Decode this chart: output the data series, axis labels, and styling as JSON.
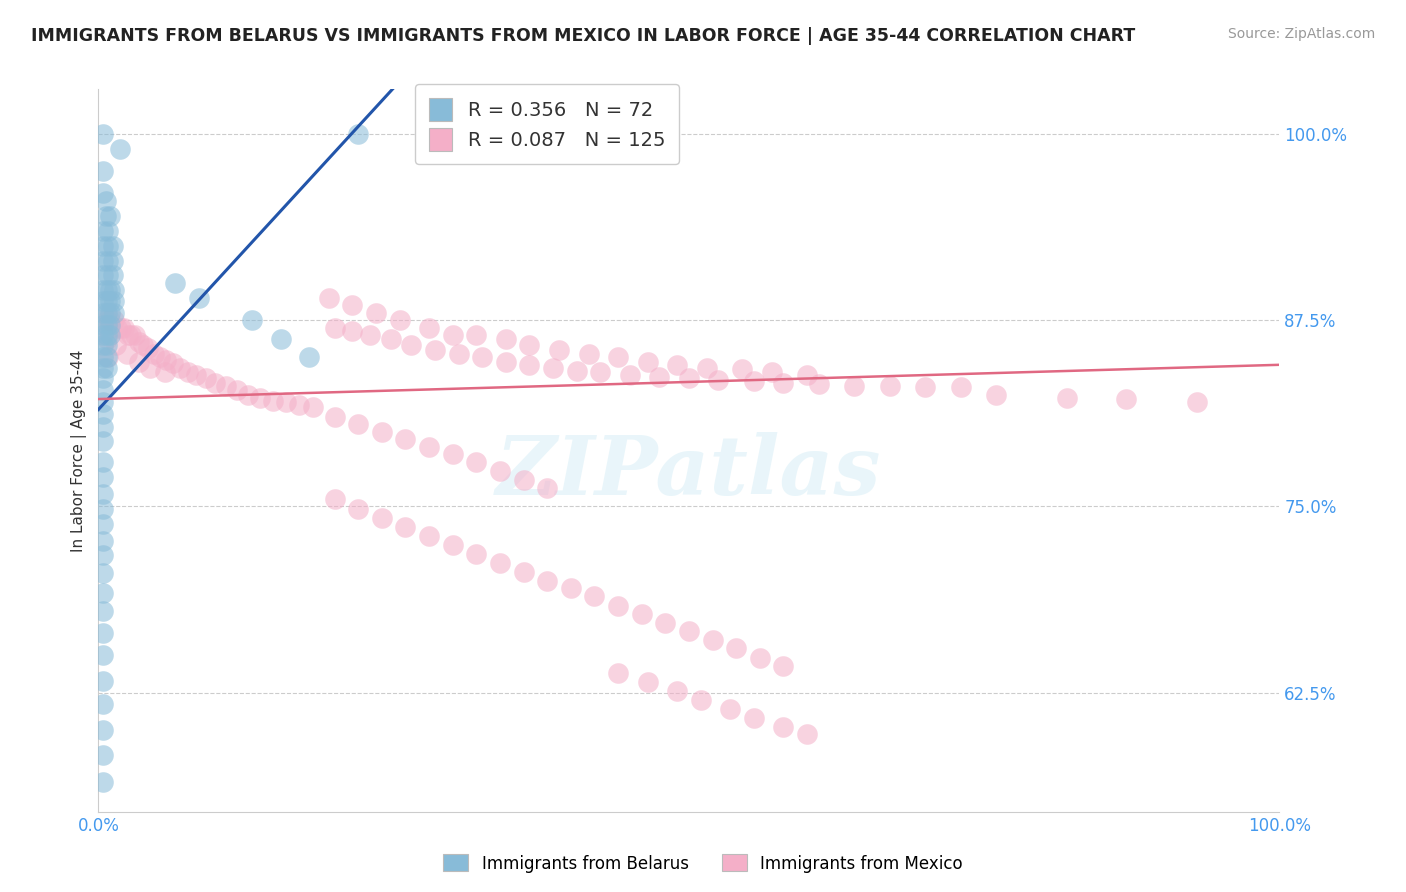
{
  "title": "IMMIGRANTS FROM BELARUS VS IMMIGRANTS FROM MEXICO IN LABOR FORCE | AGE 35-44 CORRELATION CHART",
  "source": "Source: ZipAtlas.com",
  "ylabel": "In Labor Force | Age 35-44",
  "xlim": [
    0.0,
    1.0
  ],
  "ylim": [
    0.545,
    1.03
  ],
  "y_ticks": [
    0.625,
    0.75,
    0.875,
    1.0
  ],
  "y_tick_labels": [
    "62.5%",
    "75.0%",
    "87.5%",
    "100.0%"
  ],
  "x_ticks": [
    0.0,
    1.0
  ],
  "x_tick_labels": [
    "0.0%",
    "100.0%"
  ],
  "background_color": "#ffffff",
  "grid_color": "#cccccc",
  "blue_color": "#88bbd8",
  "pink_color": "#f4afc8",
  "blue_line_color": "#2255aa",
  "pink_line_color": "#e06882",
  "watermark": "ZIPatlas",
  "blue_label_R": "0.356",
  "blue_label_N": "72",
  "pink_label_R": "0.087",
  "pink_label_N": "125",
  "blue_scatter": [
    [
      0.004,
      1.0
    ],
    [
      0.018,
      0.99
    ],
    [
      0.004,
      0.975
    ],
    [
      0.004,
      0.96
    ],
    [
      0.006,
      0.955
    ],
    [
      0.006,
      0.945
    ],
    [
      0.01,
      0.945
    ],
    [
      0.004,
      0.935
    ],
    [
      0.008,
      0.935
    ],
    [
      0.004,
      0.925
    ],
    [
      0.008,
      0.925
    ],
    [
      0.012,
      0.925
    ],
    [
      0.004,
      0.915
    ],
    [
      0.008,
      0.915
    ],
    [
      0.012,
      0.915
    ],
    [
      0.004,
      0.905
    ],
    [
      0.008,
      0.905
    ],
    [
      0.012,
      0.905
    ],
    [
      0.004,
      0.895
    ],
    [
      0.007,
      0.895
    ],
    [
      0.01,
      0.895
    ],
    [
      0.013,
      0.895
    ],
    [
      0.004,
      0.888
    ],
    [
      0.007,
      0.888
    ],
    [
      0.01,
      0.888
    ],
    [
      0.013,
      0.888
    ],
    [
      0.004,
      0.88
    ],
    [
      0.007,
      0.88
    ],
    [
      0.01,
      0.88
    ],
    [
      0.013,
      0.88
    ],
    [
      0.004,
      0.872
    ],
    [
      0.007,
      0.872
    ],
    [
      0.01,
      0.872
    ],
    [
      0.004,
      0.865
    ],
    [
      0.007,
      0.865
    ],
    [
      0.01,
      0.865
    ],
    [
      0.004,
      0.858
    ],
    [
      0.007,
      0.858
    ],
    [
      0.004,
      0.85
    ],
    [
      0.007,
      0.85
    ],
    [
      0.004,
      0.843
    ],
    [
      0.007,
      0.843
    ],
    [
      0.004,
      0.836
    ],
    [
      0.004,
      0.828
    ],
    [
      0.004,
      0.82
    ],
    [
      0.065,
      0.9
    ],
    [
      0.004,
      0.812
    ],
    [
      0.004,
      0.803
    ],
    [
      0.004,
      0.794
    ],
    [
      0.004,
      0.78
    ],
    [
      0.004,
      0.77
    ],
    [
      0.004,
      0.758
    ],
    [
      0.004,
      0.748
    ],
    [
      0.004,
      0.738
    ],
    [
      0.004,
      0.727
    ],
    [
      0.004,
      0.717
    ],
    [
      0.004,
      0.705
    ],
    [
      0.004,
      0.692
    ],
    [
      0.004,
      0.68
    ],
    [
      0.004,
      0.665
    ],
    [
      0.004,
      0.65
    ],
    [
      0.004,
      0.633
    ],
    [
      0.004,
      0.617
    ],
    [
      0.004,
      0.6
    ],
    [
      0.004,
      0.583
    ],
    [
      0.004,
      0.565
    ],
    [
      0.22,
      1.0
    ],
    [
      0.085,
      0.89
    ],
    [
      0.13,
      0.875
    ],
    [
      0.155,
      0.862
    ],
    [
      0.178,
      0.85
    ]
  ],
  "pink_scatter": [
    [
      0.004,
      0.875
    ],
    [
      0.007,
      0.875
    ],
    [
      0.01,
      0.875
    ],
    [
      0.013,
      0.875
    ],
    [
      0.016,
      0.87
    ],
    [
      0.019,
      0.87
    ],
    [
      0.022,
      0.87
    ],
    [
      0.025,
      0.865
    ],
    [
      0.028,
      0.865
    ],
    [
      0.031,
      0.865
    ],
    [
      0.034,
      0.86
    ],
    [
      0.038,
      0.858
    ],
    [
      0.042,
      0.856
    ],
    [
      0.047,
      0.852
    ],
    [
      0.052,
      0.85
    ],
    [
      0.057,
      0.848
    ],
    [
      0.063,
      0.846
    ],
    [
      0.069,
      0.843
    ],
    [
      0.076,
      0.84
    ],
    [
      0.083,
      0.838
    ],
    [
      0.091,
      0.836
    ],
    [
      0.099,
      0.833
    ],
    [
      0.108,
      0.831
    ],
    [
      0.117,
      0.828
    ],
    [
      0.127,
      0.825
    ],
    [
      0.137,
      0.823
    ],
    [
      0.148,
      0.821
    ],
    [
      0.159,
      0.82
    ],
    [
      0.17,
      0.818
    ],
    [
      0.182,
      0.817
    ],
    [
      0.007,
      0.862
    ],
    [
      0.015,
      0.858
    ],
    [
      0.024,
      0.852
    ],
    [
      0.034,
      0.847
    ],
    [
      0.044,
      0.843
    ],
    [
      0.056,
      0.84
    ],
    [
      0.008,
      0.85
    ],
    [
      0.2,
      0.87
    ],
    [
      0.215,
      0.868
    ],
    [
      0.23,
      0.865
    ],
    [
      0.248,
      0.862
    ],
    [
      0.265,
      0.858
    ],
    [
      0.285,
      0.855
    ],
    [
      0.305,
      0.852
    ],
    [
      0.325,
      0.85
    ],
    [
      0.345,
      0.847
    ],
    [
      0.365,
      0.845
    ],
    [
      0.385,
      0.843
    ],
    [
      0.405,
      0.841
    ],
    [
      0.425,
      0.84
    ],
    [
      0.45,
      0.838
    ],
    [
      0.475,
      0.837
    ],
    [
      0.5,
      0.836
    ],
    [
      0.525,
      0.835
    ],
    [
      0.555,
      0.834
    ],
    [
      0.58,
      0.833
    ],
    [
      0.61,
      0.832
    ],
    [
      0.64,
      0.831
    ],
    [
      0.67,
      0.831
    ],
    [
      0.7,
      0.83
    ],
    [
      0.73,
      0.83
    ],
    [
      0.195,
      0.89
    ],
    [
      0.215,
      0.885
    ],
    [
      0.235,
      0.88
    ],
    [
      0.255,
      0.875
    ],
    [
      0.28,
      0.87
    ],
    [
      0.3,
      0.865
    ],
    [
      0.32,
      0.865
    ],
    [
      0.345,
      0.862
    ],
    [
      0.365,
      0.858
    ],
    [
      0.39,
      0.855
    ],
    [
      0.415,
      0.852
    ],
    [
      0.44,
      0.85
    ],
    [
      0.465,
      0.847
    ],
    [
      0.49,
      0.845
    ],
    [
      0.515,
      0.843
    ],
    [
      0.545,
      0.842
    ],
    [
      0.57,
      0.84
    ],
    [
      0.6,
      0.838
    ],
    [
      0.2,
      0.755
    ],
    [
      0.22,
      0.748
    ],
    [
      0.24,
      0.742
    ],
    [
      0.26,
      0.736
    ],
    [
      0.28,
      0.73
    ],
    [
      0.3,
      0.724
    ],
    [
      0.32,
      0.718
    ],
    [
      0.34,
      0.712
    ],
    [
      0.36,
      0.706
    ],
    [
      0.38,
      0.7
    ],
    [
      0.4,
      0.695
    ],
    [
      0.42,
      0.69
    ],
    [
      0.44,
      0.683
    ],
    [
      0.46,
      0.678
    ],
    [
      0.48,
      0.672
    ],
    [
      0.5,
      0.666
    ],
    [
      0.52,
      0.66
    ],
    [
      0.54,
      0.655
    ],
    [
      0.56,
      0.648
    ],
    [
      0.58,
      0.643
    ],
    [
      0.44,
      0.638
    ],
    [
      0.465,
      0.632
    ],
    [
      0.49,
      0.626
    ],
    [
      0.51,
      0.62
    ],
    [
      0.535,
      0.614
    ],
    [
      0.555,
      0.608
    ],
    [
      0.58,
      0.602
    ],
    [
      0.6,
      0.597
    ],
    [
      0.2,
      0.81
    ],
    [
      0.22,
      0.805
    ],
    [
      0.24,
      0.8
    ],
    [
      0.26,
      0.795
    ],
    [
      0.28,
      0.79
    ],
    [
      0.3,
      0.785
    ],
    [
      0.32,
      0.78
    ],
    [
      0.34,
      0.774
    ],
    [
      0.36,
      0.768
    ],
    [
      0.38,
      0.762
    ],
    [
      0.76,
      0.825
    ],
    [
      0.82,
      0.823
    ],
    [
      0.87,
      0.822
    ],
    [
      0.93,
      0.82
    ]
  ]
}
